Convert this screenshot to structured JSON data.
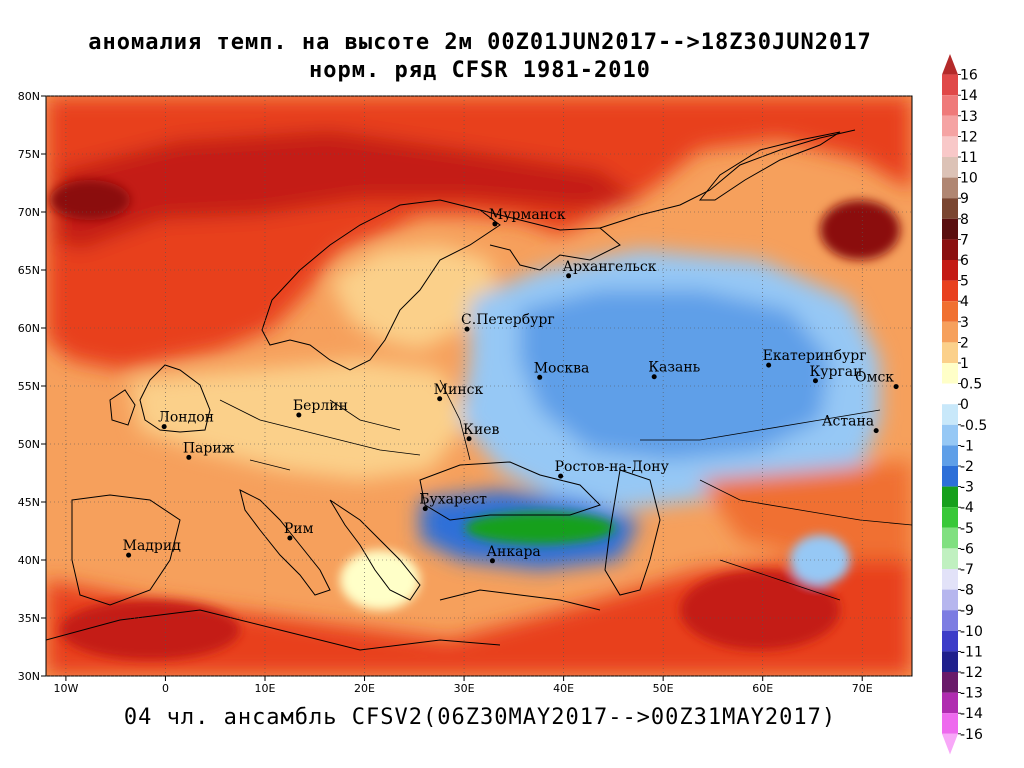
{
  "title": {
    "line1": "аномалия темп. на высоте 2м 00Z01JUN2017-->18Z30JUN2017",
    "line2": "норм. ряд CFSR 1981-2010"
  },
  "subtitle": "04 чл. ансамбль CFSV2(06Z30MAY2017-->00Z31MAY2017)",
  "map": {
    "lon_range": [
      -12,
      75
    ],
    "lat_range": [
      30,
      80
    ],
    "lon_ticks": [
      {
        "lon": -10,
        "label": "10W"
      },
      {
        "lon": 0,
        "label": "0"
      },
      {
        "lon": 10,
        "label": "10E"
      },
      {
        "lon": 20,
        "label": "20E"
      },
      {
        "lon": 30,
        "label": "30E"
      },
      {
        "lon": 40,
        "label": "40E"
      },
      {
        "lon": 50,
        "label": "50E"
      },
      {
        "lon": 60,
        "label": "60E"
      },
      {
        "lon": 70,
        "label": "70E"
      }
    ],
    "lat_ticks": [
      {
        "lat": 30,
        "label": "30N"
      },
      {
        "lat": 35,
        "label": "35N"
      },
      {
        "lat": 40,
        "label": "40N"
      },
      {
        "lat": 45,
        "label": "45N"
      },
      {
        "lat": 50,
        "label": "50N"
      },
      {
        "lat": 55,
        "label": "55N"
      },
      {
        "lat": 60,
        "label": "60N"
      },
      {
        "lat": 65,
        "label": "65N"
      },
      {
        "lat": 70,
        "label": "70N"
      },
      {
        "lat": 75,
        "label": "75N"
      },
      {
        "lat": 80,
        "label": "80N"
      }
    ],
    "cities": [
      {
        "name": "Мурманск",
        "lon": 33.1,
        "lat": 68.97
      },
      {
        "name": "Архангельск",
        "lon": 40.5,
        "lat": 64.5
      },
      {
        "name": "С.Петербург",
        "lon": 30.3,
        "lat": 59.9
      },
      {
        "name": "Москва",
        "lon": 37.6,
        "lat": 55.75
      },
      {
        "name": "Казань",
        "lon": 49.1,
        "lat": 55.8
      },
      {
        "name": "Екатеринбург",
        "lon": 60.6,
        "lat": 56.8
      },
      {
        "name": "Курган",
        "lon": 65.3,
        "lat": 55.45
      },
      {
        "name": "Омск",
        "lon": 73.4,
        "lat": 54.95
      },
      {
        "name": "Астана",
        "lon": 71.4,
        "lat": 51.15
      },
      {
        "name": "Минск",
        "lon": 27.55,
        "lat": 53.9
      },
      {
        "name": "Киев",
        "lon": 30.5,
        "lat": 50.45
      },
      {
        "name": "Берлин",
        "lon": 13.4,
        "lat": 52.5
      },
      {
        "name": "Лондон",
        "lon": -0.13,
        "lat": 51.5
      },
      {
        "name": "Париж",
        "lon": 2.35,
        "lat": 48.85
      },
      {
        "name": "Ростов-на-Дону",
        "lon": 39.7,
        "lat": 47.23
      },
      {
        "name": "Бухарест",
        "lon": 26.1,
        "lat": 44.43
      },
      {
        "name": "Рим",
        "lon": 12.5,
        "lat": 41.9
      },
      {
        "name": "Мадрид",
        "lon": -3.7,
        "lat": 40.42
      },
      {
        "name": "Анкара",
        "lon": 32.85,
        "lat": 39.93
      }
    ],
    "anomaly_regions": [
      {
        "region": "northern-europe-arctic",
        "level": "warm-strong"
      },
      {
        "region": "central-russia-volga-urals",
        "level": "cool-moderate"
      },
      {
        "region": "black-sea-turkey",
        "level": "cool-strong"
      },
      {
        "region": "iberia-north-africa-middle-east",
        "level": "warm-moderate"
      }
    ]
  },
  "colorbar": {
    "levels": [
      "16",
      "14",
      "13",
      "12",
      "11",
      "10",
      "9",
      "8",
      "7",
      "6",
      "5",
      "4",
      "3",
      "2",
      "1",
      "0.5",
      "0",
      "-0.5",
      "-1",
      "-2",
      "-3",
      "-4",
      "-5",
      "-6",
      "-7",
      "-8",
      "-9",
      "-10",
      "-11",
      "-12",
      "-13",
      "-14",
      "-16"
    ],
    "colors": [
      "#b42a2a",
      "#e04848",
      "#ef7a7a",
      "#f5a3a3",
      "#f8c8c8",
      "#dcc2b6",
      "#b08672",
      "#7a4530",
      "#5a0f0f",
      "#8b1010",
      "#c41a14",
      "#e8401e",
      "#f07030",
      "#f6a05c",
      "#fbd08a",
      "#ffffc8",
      "#ffffff",
      "#c8e8fa",
      "#96c8f5",
      "#5f9fe8",
      "#2d6fd8",
      "#16a01c",
      "#38c838",
      "#80e080",
      "#c0f0c0",
      "#e2e2f8",
      "#b6b6ee",
      "#7c7ce2",
      "#3c3cc8",
      "#20208c",
      "#6a1a6a",
      "#b02cb0",
      "#ee6aee",
      "#f8a8f8"
    ]
  }
}
